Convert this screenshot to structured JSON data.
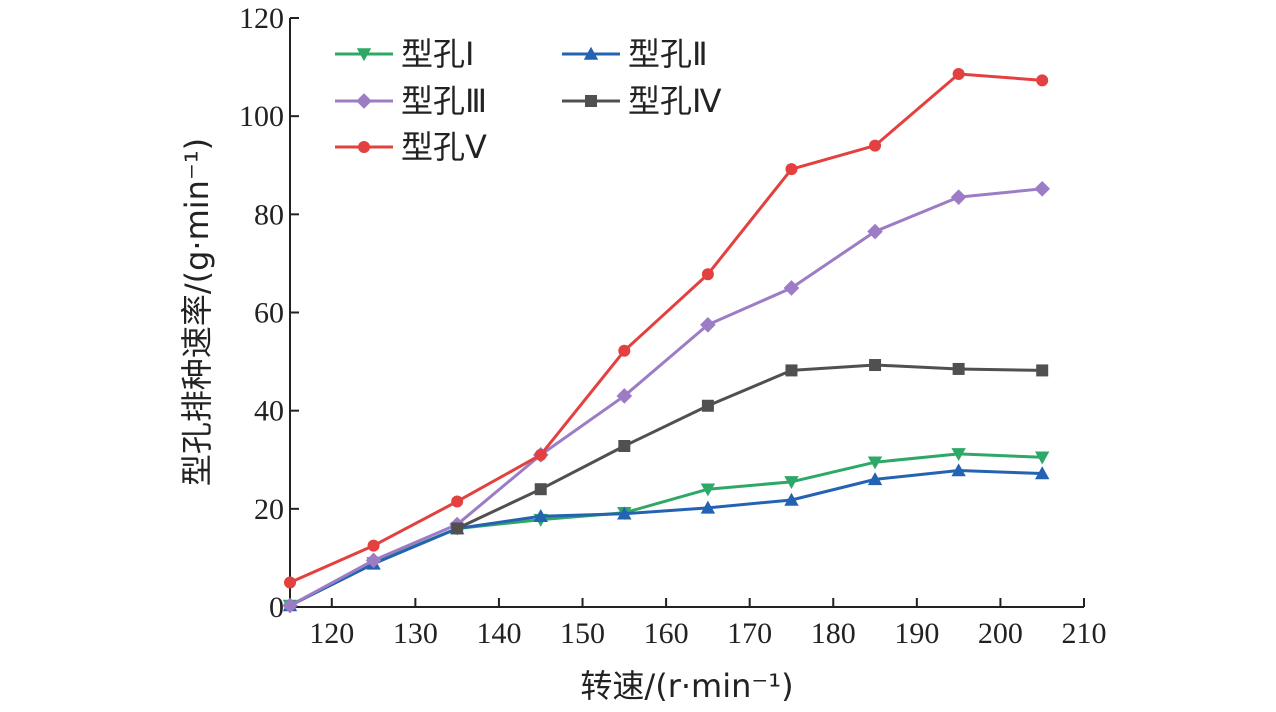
{
  "chart_data": {
    "type": "line",
    "xlabel": "转速/(r·min⁻¹)",
    "ylabel": "型孔排种速率/(g·min⁻¹)",
    "xlim": [
      115,
      210
    ],
    "ylim": [
      0,
      120
    ],
    "xticks": [
      120,
      130,
      140,
      150,
      160,
      170,
      180,
      190,
      200,
      210
    ],
    "yticks": [
      0,
      20,
      40,
      60,
      80,
      100,
      120
    ],
    "grid": false,
    "legend_position": "top-left",
    "x": [
      115,
      125,
      135,
      145,
      155,
      165,
      175,
      185,
      195,
      205
    ],
    "series": [
      {
        "name": "型孔Ⅰ",
        "color": "#2ea866",
        "marker": "triangle-down",
        "values": [
          0.3,
          9,
          16,
          17.8,
          19.2,
          24,
          25.5,
          29.5,
          31.2,
          30.5
        ]
      },
      {
        "name": "型孔Ⅱ",
        "color": "#2463b2",
        "marker": "triangle-up",
        "values": [
          0.3,
          8.8,
          16,
          18.5,
          19,
          20.2,
          21.8,
          26,
          27.8,
          27.2
        ]
      },
      {
        "name": "型孔Ⅲ",
        "color": "#9b7cc5",
        "marker": "diamond",
        "values": [
          0.3,
          9.5,
          16.8,
          31,
          43,
          57.5,
          65,
          76.5,
          83.5,
          85.2
        ]
      },
      {
        "name": "型孔Ⅳ",
        "color": "#505050",
        "marker": "square",
        "values": [
          null,
          null,
          16,
          24,
          32.8,
          41,
          48.2,
          49.3,
          48.5,
          48.2
        ]
      },
      {
        "name": "型孔Ⅴ",
        "color": "#e2413f",
        "marker": "circle",
        "values": [
          5,
          12.5,
          21.5,
          31,
          52.2,
          67.8,
          89.2,
          94,
          108.6,
          107.3
        ]
      }
    ]
  }
}
